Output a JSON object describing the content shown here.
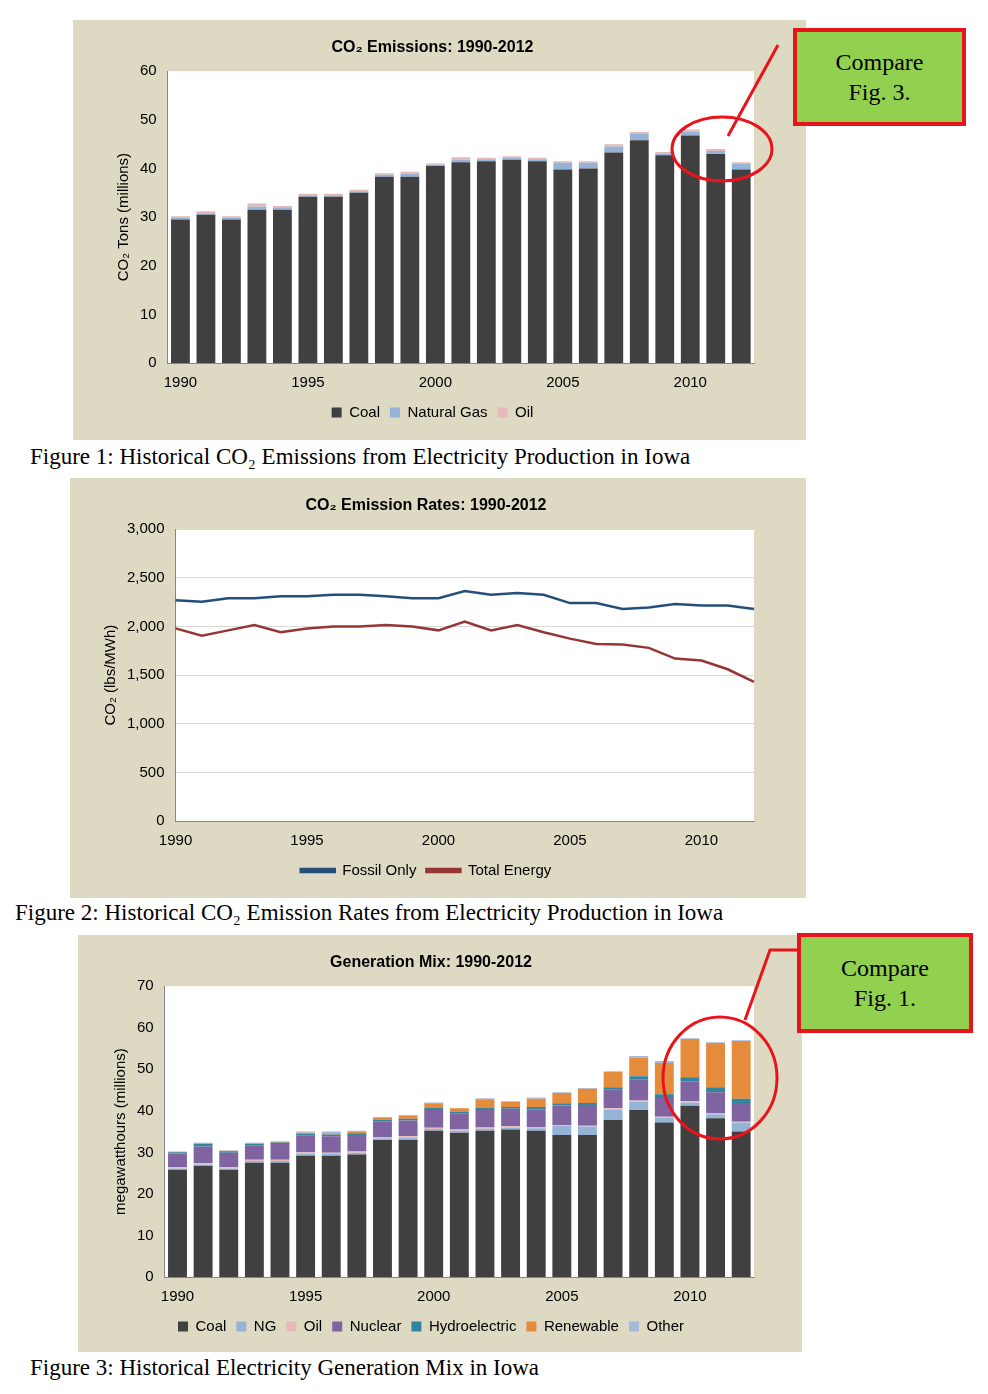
{
  "chart_data": [
    {
      "type": "bar",
      "title": "CO₂ Emissions: 1990-2012",
      "y_label": "CO₂ Tons (millions)",
      "caption": "Figure 1: Historical CO₂ Emissions from Electricity Production in Iowa",
      "annotation": [
        "Compare",
        "Fig. 3."
      ],
      "stacked": true,
      "grid": false,
      "legend": "bottom",
      "categories": [
        "1990",
        null,
        null,
        null,
        null,
        "1995",
        null,
        null,
        null,
        null,
        "2000",
        null,
        null,
        null,
        null,
        "2005",
        null,
        null,
        null,
        null,
        "2010",
        null,
        null
      ],
      "series": [
        {
          "name": "Coal",
          "color": "#404040",
          "values": [
            29.5,
            30.5,
            29.5,
            31.5,
            31.5,
            34.2,
            34.2,
            35,
            38.3,
            38.3,
            40.5,
            41.3,
            41.5,
            41.8,
            41.5,
            39.8,
            40,
            43.3,
            45.8,
            42.7,
            46.8,
            43,
            39.8
          ]
        },
        {
          "name": "Natural Gas",
          "color": "#95b3d7",
          "values": [
            0.3,
            0.3,
            0.3,
            0.7,
            0.5,
            0.3,
            0.3,
            0.3,
            0.4,
            0.6,
            0.3,
            0.5,
            0.4,
            0.4,
            0.4,
            1.4,
            1.2,
            1.2,
            1.3,
            0.4,
            0.8,
            0.6,
            1.2
          ]
        },
        {
          "name": "Oil",
          "color": "#e6b9b8",
          "values": [
            0.4,
            0.4,
            0.4,
            0.6,
            0.3,
            0.3,
            0.3,
            0.3,
            0.3,
            0.4,
            0.2,
            0.5,
            0.3,
            0.3,
            0.3,
            0.3,
            0.3,
            0.5,
            0.4,
            0.3,
            0.4,
            0.4,
            0.3
          ]
        }
      ],
      "ylim": [
        0,
        60
      ],
      "yticks": [
        0,
        10,
        20,
        30,
        40,
        50,
        60
      ]
    },
    {
      "type": "line",
      "title": "CO₂ Emission Rates: 1990-2012",
      "y_label": "CO₂ (lbs/MWh)",
      "caption": "Figure 2: Historical CO₂ Emission Rates from Electricity Production in Iowa",
      "grid": true,
      "legend": "bottom",
      "categories": [
        "1990",
        null,
        null,
        null,
        null,
        "1995",
        null,
        null,
        null,
        null,
        "2000",
        null,
        null,
        null,
        null,
        "2005",
        null,
        null,
        null,
        null,
        "2010",
        null,
        null
      ],
      "series": [
        {
          "name": "Fossil Only",
          "color": "#254e7a",
          "values": [
            2270,
            2255,
            2290,
            2290,
            2310,
            2310,
            2325,
            2325,
            2310,
            2290,
            2290,
            2365,
            2325,
            2345,
            2325,
            2240,
            2240,
            2180,
            2195,
            2230,
            2215,
            2215,
            2180
          ]
        },
        {
          "name": "Total Energy",
          "color": "#963634",
          "values": [
            1980,
            1905,
            1960,
            2015,
            1940,
            1980,
            2000,
            2000,
            2015,
            2000,
            1960,
            2050,
            1960,
            2015,
            1940,
            1875,
            1820,
            1815,
            1780,
            1670,
            1650,
            1560,
            1430
          ]
        }
      ],
      "ylim": [
        0,
        3000
      ],
      "yticks": [
        0,
        500,
        {
          "value": 1000,
          "label": "1,000"
        },
        {
          "value": 1500,
          "label": "1,500"
        },
        {
          "value": 2000,
          "label": "2,000"
        },
        {
          "value": 2500,
          "label": "2,500"
        },
        {
          "value": 3000,
          "label": "3,000"
        }
      ]
    },
    {
      "type": "bar",
      "title": "Generation Mix: 1990-2012",
      "y_label": "megawatthours (millions)",
      "caption": "Figure 3: Historical Electricity Generation Mix in Iowa",
      "annotation": [
        "Compare",
        "Fig. 1."
      ],
      "stacked": true,
      "grid": false,
      "legend": "bottom",
      "categories": [
        "1990",
        null,
        null,
        null,
        null,
        "1995",
        null,
        null,
        null,
        null,
        "2000",
        null,
        null,
        null,
        null,
        "2005",
        null,
        null,
        null,
        null,
        "2010",
        null,
        null
      ],
      "series": [
        {
          "name": "Coal",
          "color": "#404040",
          "values": [
            25.8,
            26.8,
            25.8,
            27.5,
            27.5,
            29.2,
            29.2,
            29.5,
            33,
            33,
            35.2,
            34.7,
            35.2,
            35.5,
            35.2,
            34.2,
            34.2,
            37.8,
            40.2,
            37.2,
            41.2,
            38.2,
            35
          ]
        },
        {
          "name": "NG",
          "color": "#95b3d7",
          "values": [
            0.3,
            0.3,
            0.3,
            0.4,
            0.4,
            0.5,
            0.4,
            0.4,
            0.4,
            0.6,
            0.4,
            0.5,
            0.5,
            0.5,
            0.6,
            2.2,
            2,
            2.5,
            2,
            1.2,
            0.8,
            1,
            2.2
          ]
        },
        {
          "name": "Oil",
          "color": "#e6b9b8",
          "values": [
            0.3,
            0.3,
            0.3,
            0.3,
            0.3,
            0.3,
            0.3,
            0.3,
            0.3,
            0.3,
            0.3,
            0.3,
            0.3,
            0.3,
            0.3,
            0.2,
            0.2,
            0.3,
            0.3,
            0.2,
            0.3,
            0.3,
            0.2
          ]
        },
        {
          "name": "Nuclear",
          "color": "#8064a2",
          "values": [
            3.3,
            4,
            3.5,
            3.5,
            3.8,
            4,
            4,
            4,
            3.8,
            3.8,
            4.3,
            3.8,
            4.2,
            4.2,
            4.3,
            4.7,
            5,
            4.5,
            5,
            4.5,
            4.8,
            5,
            4.5
          ]
        },
        {
          "name": "Hydroelectric",
          "color": "#31859c",
          "values": [
            0.3,
            0.7,
            0.4,
            0.4,
            0.4,
            0.5,
            0.4,
            0.4,
            0.4,
            0.4,
            0.5,
            0.4,
            0.5,
            0.4,
            0.5,
            0.5,
            0.5,
            0.6,
            0.8,
            0.9,
            1,
            1.2,
            1
          ]
        },
        {
          "name": "Renewable",
          "color": "#e48b3c",
          "values": [
            0.1,
            0.1,
            0.1,
            0.1,
            0.1,
            0.2,
            0.3,
            0.3,
            0.4,
            0.7,
            1.1,
            0.9,
            2.1,
            1.2,
            2,
            2.5,
            3.4,
            3.7,
            4.5,
            7.5,
            9.2,
            10.6,
            13.9
          ]
        },
        {
          "name": "Other",
          "color": "#a7b9d9",
          "values": [
            0.1,
            0.1,
            0.1,
            0.1,
            0.2,
            0.3,
            0.4,
            0.3,
            0.2,
            0.2,
            0.2,
            0.1,
            0.2,
            0.2,
            0.3,
            0.2,
            0.2,
            0.1,
            0.4,
            0.5,
            0.2,
            0.2,
            0.2
          ]
        }
      ],
      "ylim": [
        0,
        70
      ],
      "yticks": [
        0,
        10,
        20,
        30,
        40,
        50,
        60,
        70
      ]
    }
  ]
}
